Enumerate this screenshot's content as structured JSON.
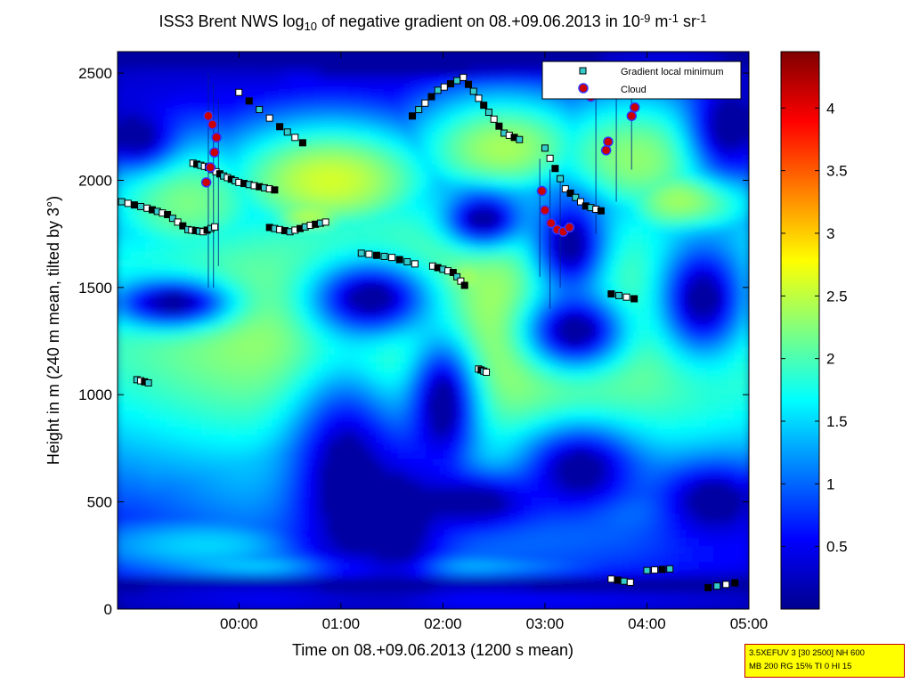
{
  "chart_data": {
    "type": "heatmap",
    "title_parts": [
      {
        "text": "ISS3 Brent NWS log",
        "style": "normal"
      },
      {
        "text": "10",
        "style": "sub"
      },
      {
        "text": " of negative gradient on 08.+09.06.2013 in 10",
        "style": "normal"
      },
      {
        "text": "-9",
        "style": "sup"
      },
      {
        "text": " m",
        "style": "normal"
      },
      {
        "text": "-1",
        "style": "sup"
      },
      {
        "text": " sr",
        "style": "normal"
      },
      {
        "text": "-1",
        "style": "sup"
      }
    ],
    "xlabel": "Time on 08.+09.06.2013 (1200 s mean)",
    "ylabel": "Height in m (240 m mean, tilted by 3°)",
    "x_ticks": [
      "00:00",
      "01:00",
      "02:00",
      "03:00",
      "04:00",
      "05:00"
    ],
    "x_range_hours": [
      -1.19,
      5.0
    ],
    "y_ticks": [
      0,
      500,
      1000,
      1500,
      2000,
      2500
    ],
    "ylim": [
      0,
      2600
    ],
    "colorbar": {
      "ticks": [
        0.5,
        1,
        1.5,
        2,
        2.5,
        3,
        3.5,
        4
      ],
      "range": [
        0,
        4.45
      ],
      "colormap": "jet"
    },
    "legend": {
      "placement": "top-right",
      "entries": [
        {
          "label": "Gradient local minimum",
          "marker": "square",
          "color": "#33cccc"
        },
        {
          "label": "Cloud",
          "marker": "circle",
          "color": "#cc0000"
        }
      ]
    },
    "gradient_minimum_tracks": [
      {
        "t": [
          -1.15,
          -0.9,
          -0.7,
          -0.5,
          -0.35,
          -0.2
        ],
        "h": [
          1900,
          1870,
          1840,
          1770,
          1760,
          1790
        ]
      },
      {
        "t": [
          -0.45,
          -0.3,
          -0.15,
          0.0,
          0.2,
          0.4
        ],
        "h": [
          2080,
          2060,
          2020,
          1990,
          1970,
          1950
        ]
      },
      {
        "t": [
          0.3,
          0.5,
          0.7,
          0.9
        ],
        "h": [
          1780,
          1760,
          1790,
          1810
        ]
      },
      {
        "t": [
          1.2,
          1.5,
          1.8
        ],
        "h": [
          1660,
          1640,
          1600
        ]
      },
      {
        "t": [
          1.9,
          2.1,
          2.25
        ],
        "h": [
          1600,
          1570,
          1490
        ]
      },
      {
        "t": [
          1.7,
          1.95,
          2.2,
          2.4,
          2.6,
          2.8
        ],
        "h": [
          2300,
          2420,
          2480,
          2350,
          2220,
          2180
        ]
      },
      {
        "t": [
          -1.0,
          -0.85
        ],
        "h": [
          1070,
          1050
        ]
      },
      {
        "t": [
          2.35,
          2.45
        ],
        "h": [
          1120,
          1100
        ]
      },
      {
        "t": [
          3.65,
          3.95
        ],
        "h": [
          1470,
          1440
        ]
      },
      {
        "t": [
          4.0,
          4.3
        ],
        "h": [
          180,
          190
        ]
      },
      {
        "t": [
          3.65,
          3.9
        ],
        "h": [
          140,
          120
        ]
      },
      {
        "t": [
          4.6,
          4.95
        ],
        "h": [
          100,
          130
        ]
      },
      {
        "t": [
          3.0,
          3.2,
          3.4,
          3.6
        ],
        "h": [
          2150,
          1960,
          1880,
          1850
        ]
      },
      {
        "t": [
          0.0,
          0.4,
          0.7
        ],
        "h": [
          2410,
          2250,
          2150
        ]
      }
    ],
    "cloud_tracks": [
      {
        "t": [
          -0.32,
          -0.28,
          -0.24,
          -0.22,
          -0.26,
          -0.3
        ],
        "h": [
          1990,
          2060,
          2130,
          2200,
          2260,
          2300
        ]
      },
      {
        "t": [
          2.97,
          3.0,
          3.06,
          3.12,
          3.18,
          3.24
        ],
        "h": [
          1950,
          1860,
          1800,
          1770,
          1760,
          1780
        ]
      },
      {
        "t": [
          3.6,
          3.62
        ],
        "h": [
          2140,
          2180
        ]
      },
      {
        "t": [
          3.45,
          3.5
        ],
        "h": [
          2390,
          2420
        ]
      },
      {
        "t": [
          3.85,
          3.88
        ],
        "h": [
          2300,
          2340
        ]
      }
    ]
  },
  "info_box": {
    "line1": "3.5XEFUV 3 [30 2500] NH 600",
    "line2": "MB 200 RG 15% TI 0 HI 15"
  }
}
